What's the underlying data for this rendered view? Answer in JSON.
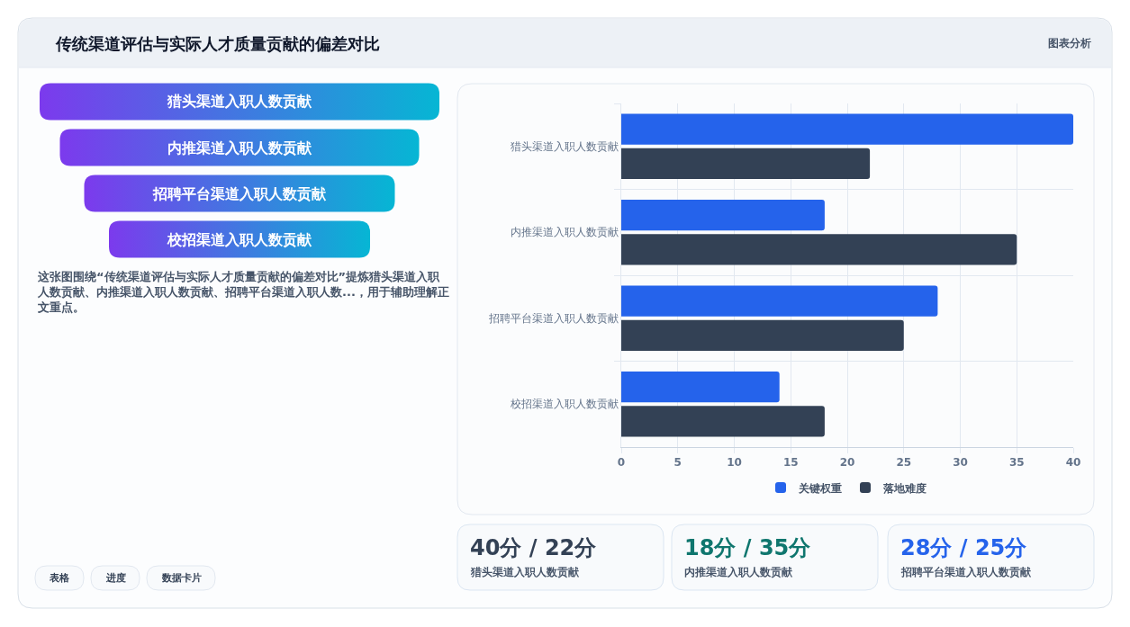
{
  "chart_data": {
    "type": "bar",
    "orientation": "horizontal",
    "title": "传统渠道评估与实际人才质量贡献的偏差对比",
    "categories": [
      "猎头渠道入职人数贡献",
      "内推渠道入职人数贡献",
      "招聘平台渠道入职人数贡献",
      "校招渠道入职人数贡献"
    ],
    "series": [
      {
        "name": "关键权重",
        "color": "#2563eb",
        "values": [
          40,
          18,
          28,
          14
        ]
      },
      {
        "name": "落地难度",
        "color": "#334155",
        "values": [
          22,
          35,
          25,
          18
        ]
      }
    ],
    "xlim": [
      0,
      40
    ],
    "xticks": [
      0,
      5,
      10,
      15,
      20,
      25,
      30,
      35,
      40
    ],
    "grid": true,
    "legend": "bottom",
    "annotations": [
      "图表分析",
      "猎头渠道入职人数贡献",
      "内推渠道入职人数贡献",
      "招聘平台渠道入职人数贡献",
      "校招渠道入职人数贡献",
      "这张图围绕“传统渠道评估与实际人才质量贡献的偏差对比”提炼猎头渠道入职人数贡献、内推渠道入职人数贡献、招聘平台渠道入职人数...，用于辅助理解正文重点。",
      "40分 / 22分",
      "猎头渠道入职人数贡献",
      "18分 / 35分",
      "内推渠道入职人数贡献",
      "28分 / 25分",
      "招聘平台渠道入职人数贡献",
      "表格",
      "进度",
      "数据卡片"
    ]
  }
}
